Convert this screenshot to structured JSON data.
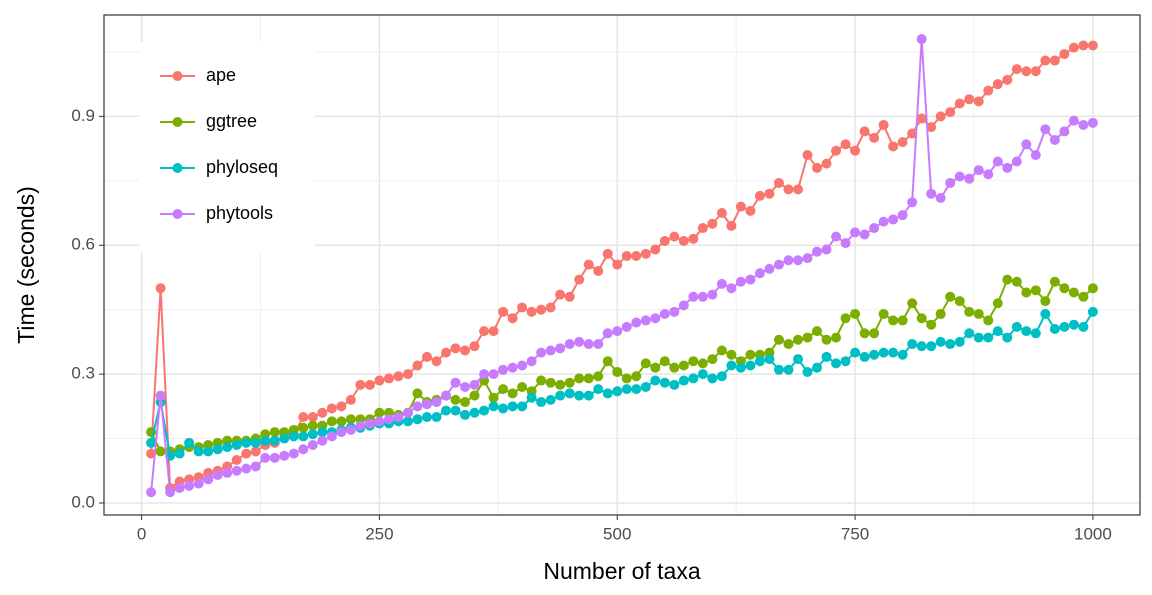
{
  "chart_data": {
    "type": "line",
    "x_label": "Number of taxa",
    "y_label": "Time (seconds)",
    "x": [
      10,
      20,
      30,
      40,
      50,
      60,
      70,
      80,
      90,
      100,
      110,
      120,
      130,
      140,
      150,
      160,
      170,
      180,
      190,
      200,
      210,
      220,
      230,
      240,
      250,
      260,
      270,
      280,
      290,
      300,
      310,
      320,
      330,
      340,
      350,
      360,
      370,
      380,
      390,
      400,
      410,
      420,
      430,
      440,
      450,
      460,
      470,
      480,
      490,
      500,
      510,
      520,
      530,
      540,
      550,
      560,
      570,
      580,
      590,
      600,
      610,
      620,
      630,
      640,
      650,
      660,
      670,
      680,
      690,
      700,
      710,
      720,
      730,
      740,
      750,
      760,
      770,
      780,
      790,
      800,
      810,
      820,
      830,
      840,
      850,
      860,
      870,
      880,
      890,
      900,
      910,
      920,
      930,
      940,
      950,
      960,
      970,
      980,
      990,
      1000
    ],
    "series": [
      {
        "name": "ape",
        "color": "#F8766D",
        "values": [
          0.115,
          0.5,
          0.035,
          0.05,
          0.055,
          0.06,
          0.07,
          0.075,
          0.085,
          0.1,
          0.115,
          0.12,
          0.135,
          0.14,
          0.155,
          0.16,
          0.2,
          0.2,
          0.21,
          0.22,
          0.225,
          0.24,
          0.275,
          0.275,
          0.285,
          0.29,
          0.295,
          0.3,
          0.32,
          0.34,
          0.33,
          0.35,
          0.36,
          0.355,
          0.365,
          0.4,
          0.4,
          0.445,
          0.43,
          0.455,
          0.445,
          0.45,
          0.455,
          0.485,
          0.48,
          0.52,
          0.555,
          0.54,
          0.58,
          0.555,
          0.575,
          0.575,
          0.58,
          0.59,
          0.61,
          0.62,
          0.61,
          0.615,
          0.64,
          0.65,
          0.675,
          0.645,
          0.69,
          0.68,
          0.715,
          0.72,
          0.745,
          0.73,
          0.73,
          0.81,
          0.78,
          0.79,
          0.82,
          0.835,
          0.82,
          0.865,
          0.85,
          0.88,
          0.83,
          0.84,
          0.86,
          0.895,
          0.875,
          0.9,
          0.91,
          0.93,
          0.94,
          0.935,
          0.96,
          0.975,
          0.985,
          1.01,
          1.005,
          1.005,
          1.03,
          1.03,
          1.045,
          1.06,
          1.065,
          1.065
        ]
      },
      {
        "name": "ggtree",
        "color": "#7CAE00",
        "values": [
          0.165,
          0.12,
          0.12,
          0.125,
          0.13,
          0.13,
          0.135,
          0.14,
          0.145,
          0.145,
          0.145,
          0.15,
          0.16,
          0.165,
          0.165,
          0.17,
          0.175,
          0.18,
          0.18,
          0.19,
          0.19,
          0.195,
          0.195,
          0.195,
          0.21,
          0.21,
          0.205,
          0.21,
          0.255,
          0.235,
          0.24,
          0.25,
          0.24,
          0.235,
          0.25,
          0.285,
          0.245,
          0.265,
          0.255,
          0.27,
          0.26,
          0.285,
          0.28,
          0.275,
          0.28,
          0.29,
          0.29,
          0.295,
          0.33,
          0.305,
          0.29,
          0.295,
          0.325,
          0.315,
          0.33,
          0.315,
          0.32,
          0.33,
          0.325,
          0.335,
          0.355,
          0.345,
          0.33,
          0.345,
          0.345,
          0.35,
          0.38,
          0.37,
          0.38,
          0.385,
          0.4,
          0.38,
          0.385,
          0.43,
          0.44,
          0.395,
          0.395,
          0.44,
          0.425,
          0.425,
          0.465,
          0.43,
          0.415,
          0.44,
          0.48,
          0.47,
          0.445,
          0.44,
          0.425,
          0.465,
          0.52,
          0.515,
          0.49,
          0.495,
          0.47,
          0.515,
          0.5,
          0.49,
          0.48,
          0.5
        ]
      },
      {
        "name": "phyloseq",
        "color": "#00BFC4",
        "values": [
          0.14,
          0.235,
          0.11,
          0.115,
          0.14,
          0.12,
          0.12,
          0.125,
          0.13,
          0.135,
          0.14,
          0.14,
          0.145,
          0.145,
          0.15,
          0.155,
          0.155,
          0.16,
          0.165,
          0.165,
          0.17,
          0.175,
          0.175,
          0.18,
          0.185,
          0.185,
          0.19,
          0.19,
          0.195,
          0.2,
          0.2,
          0.215,
          0.215,
          0.205,
          0.21,
          0.215,
          0.225,
          0.22,
          0.225,
          0.225,
          0.245,
          0.235,
          0.24,
          0.25,
          0.255,
          0.25,
          0.25,
          0.265,
          0.255,
          0.26,
          0.265,
          0.265,
          0.27,
          0.285,
          0.28,
          0.275,
          0.285,
          0.29,
          0.3,
          0.29,
          0.295,
          0.32,
          0.315,
          0.32,
          0.33,
          0.335,
          0.31,
          0.31,
          0.335,
          0.305,
          0.315,
          0.34,
          0.325,
          0.33,
          0.35,
          0.34,
          0.345,
          0.35,
          0.35,
          0.345,
          0.37,
          0.365,
          0.365,
          0.375,
          0.37,
          0.375,
          0.395,
          0.385,
          0.385,
          0.4,
          0.385,
          0.41,
          0.4,
          0.395,
          0.44,
          0.405,
          0.41,
          0.415,
          0.41,
          0.445
        ]
      },
      {
        "name": "phytools",
        "color": "#C77CFF",
        "values": [
          0.025,
          0.25,
          0.025,
          0.035,
          0.04,
          0.045,
          0.055,
          0.065,
          0.07,
          0.075,
          0.08,
          0.085,
          0.105,
          0.105,
          0.11,
          0.115,
          0.125,
          0.135,
          0.145,
          0.155,
          0.165,
          0.17,
          0.18,
          0.185,
          0.19,
          0.195,
          0.2,
          0.21,
          0.225,
          0.23,
          0.235,
          0.25,
          0.28,
          0.27,
          0.275,
          0.3,
          0.3,
          0.31,
          0.315,
          0.32,
          0.33,
          0.35,
          0.355,
          0.36,
          0.37,
          0.375,
          0.37,
          0.37,
          0.395,
          0.4,
          0.41,
          0.42,
          0.425,
          0.43,
          0.44,
          0.445,
          0.46,
          0.48,
          0.48,
          0.485,
          0.51,
          0.5,
          0.515,
          0.52,
          0.535,
          0.545,
          0.555,
          0.565,
          0.565,
          0.57,
          0.585,
          0.59,
          0.62,
          0.605,
          0.63,
          0.625,
          0.64,
          0.655,
          0.66,
          0.67,
          0.7,
          1.08,
          0.72,
          0.71,
          0.745,
          0.76,
          0.755,
          0.775,
          0.765,
          0.795,
          0.78,
          0.795,
          0.835,
          0.81,
          0.87,
          0.845,
          0.865,
          0.89,
          0.88,
          0.885
        ]
      }
    ],
    "xlim": [
      -39.5,
      1049.5
    ],
    "ylim": [
      -0.028,
      1.136
    ],
    "xticks": [
      0,
      250,
      500,
      750,
      1000
    ],
    "yticks": [
      {
        "value": 0,
        "label": "0.0"
      },
      0.3,
      0.6,
      0.9
    ],
    "grid": true,
    "legend_position": "top-left"
  }
}
